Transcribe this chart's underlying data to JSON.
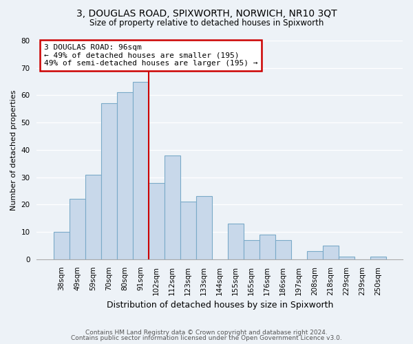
{
  "title": "3, DOUGLAS ROAD, SPIXWORTH, NORWICH, NR10 3QT",
  "subtitle": "Size of property relative to detached houses in Spixworth",
  "xlabel": "Distribution of detached houses by size in Spixworth",
  "ylabel": "Number of detached properties",
  "bar_labels": [
    "38sqm",
    "49sqm",
    "59sqm",
    "70sqm",
    "80sqm",
    "91sqm",
    "102sqm",
    "112sqm",
    "123sqm",
    "133sqm",
    "144sqm",
    "155sqm",
    "165sqm",
    "176sqm",
    "186sqm",
    "197sqm",
    "208sqm",
    "218sqm",
    "229sqm",
    "239sqm",
    "250sqm"
  ],
  "bar_values": [
    10,
    22,
    31,
    57,
    61,
    65,
    28,
    38,
    21,
    23,
    0,
    13,
    7,
    9,
    7,
    0,
    3,
    5,
    1,
    0,
    1
  ],
  "bar_color": "#c8d8ea",
  "bar_edge_color": "#7aaac8",
  "vline_x_index": 6,
  "ylim": [
    0,
    80
  ],
  "yticks": [
    0,
    10,
    20,
    30,
    40,
    50,
    60,
    70,
    80
  ],
  "annotation_line1": "3 DOUGLAS ROAD: 96sqm",
  "annotation_line2": "← 49% of detached houses are smaller (195)",
  "annotation_line3": "49% of semi-detached houses are larger (195) →",
  "annotation_box_color": "#ffffff",
  "annotation_box_edge": "#cc0000",
  "vline_color": "#cc0000",
  "footer1": "Contains HM Land Registry data © Crown copyright and database right 2024.",
  "footer2": "Contains public sector information licensed under the Open Government Licence v3.0.",
  "background_color": "#edf2f7",
  "grid_color": "#ffffff",
  "title_fontsize": 10,
  "subtitle_fontsize": 8.5,
  "ylabel_fontsize": 8,
  "xlabel_fontsize": 9,
  "tick_fontsize": 7.5
}
